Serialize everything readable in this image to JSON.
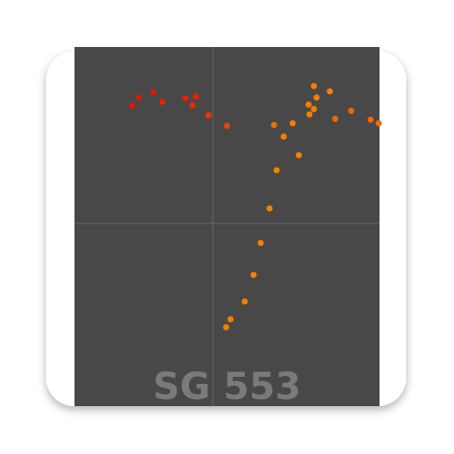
{
  "label": "SG 553"
}
